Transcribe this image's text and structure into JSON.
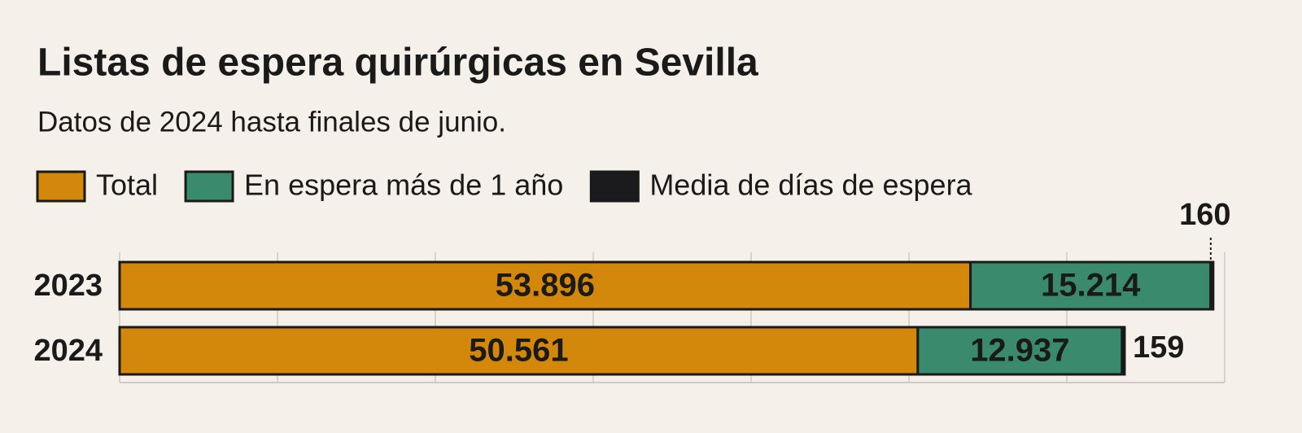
{
  "chart_data": {
    "type": "stacked-barh",
    "title": "Listas de espera quirúrgicas en Sevilla",
    "subtitle": "Datos de 2024 hasta finales de junio.",
    "categories": [
      "2023",
      "2024"
    ],
    "series": [
      {
        "name": "Total",
        "color": "#d3870b",
        "values": [
          53896,
          50561
        ],
        "value_labels": [
          "53.896",
          "50.561"
        ]
      },
      {
        "name": "En espera más de 1 año",
        "color": "#3a8b6d",
        "values": [
          15214,
          12937
        ],
        "value_labels": [
          "15.214",
          "12.937"
        ]
      },
      {
        "name": "Media de días de espera",
        "color": "#1b1b1d",
        "values": [
          160,
          159
        ]
      }
    ],
    "xlim": [
      0,
      70000
    ],
    "xticks": [
      0,
      10000,
      20000,
      30000,
      40000,
      50000,
      60000,
      70000
    ],
    "grid": true
  }
}
